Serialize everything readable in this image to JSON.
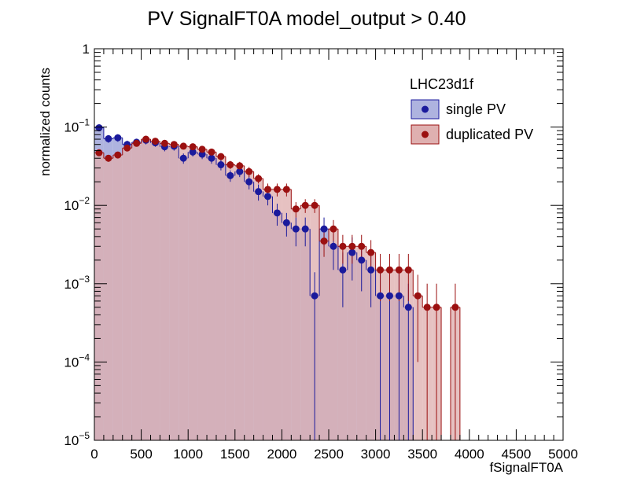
{
  "chart_data": {
    "type": "bar",
    "title": "PV SignalFT0A  model_output > 0.40",
    "xlabel": "fSignalFT0A",
    "ylabel": "normalized counts",
    "xlim": [
      0,
      5000
    ],
    "ylim": [
      1e-05,
      1
    ],
    "yscale": "log",
    "bin_width": 100,
    "x_ticks": [
      "0",
      "500",
      "1000",
      "1500",
      "2000",
      "2500",
      "3000",
      "3500",
      "4000",
      "4500",
      "5000"
    ],
    "y_ticks": [
      {
        "base": "1",
        "exp": ""
      },
      {
        "base": "10",
        "exp": "−1"
      },
      {
        "base": "10",
        "exp": "−2"
      },
      {
        "base": "10",
        "exp": "−3"
      },
      {
        "base": "10",
        "exp": "−4"
      },
      {
        "base": "10",
        "exp": "−5"
      }
    ],
    "legend": {
      "header": "LHC23d1f",
      "placement": "top-right"
    },
    "series": [
      {
        "name": "single PV",
        "fill": "#aeb3df",
        "marker": "#1a1a9c",
        "line": "#1a1a9c",
        "values": [
          0.098,
          0.071,
          0.073,
          0.06,
          0.064,
          0.068,
          0.063,
          0.056,
          0.057,
          0.04,
          0.048,
          0.045,
          0.04,
          0.033,
          0.024,
          0.027,
          0.02,
          0.015,
          0.013,
          0.008,
          0.006,
          0.005,
          0.005,
          0.0007,
          0.005,
          0.003,
          0.0015,
          0.0025,
          0.002,
          0.0015,
          0.0007,
          0.0007,
          0.0007,
          0.0005,
          0,
          0,
          0,
          0,
          0,
          0,
          0,
          0,
          0,
          0,
          0,
          0,
          0,
          0,
          0,
          0
        ],
        "errors": [
          0.01,
          0.008,
          0.008,
          0.007,
          0.007,
          0.008,
          0.007,
          0.007,
          0.007,
          0.006,
          0.006,
          0.006,
          0.006,
          0.005,
          0.004,
          0.004,
          0.004,
          0.0035,
          0.003,
          0.0025,
          0.002,
          0.002,
          0.002,
          0.0007,
          0.002,
          0.0015,
          0.001,
          0.0014,
          0.0012,
          0.001,
          0.0007,
          0.0007,
          0.0007,
          0.0005,
          0,
          0,
          0,
          0,
          0,
          0,
          0,
          0,
          0,
          0,
          0,
          0,
          0,
          0,
          0,
          0
        ]
      },
      {
        "name": "duplicated PV",
        "fill": "#dfb0b0",
        "marker": "#9b1010",
        "line": "#9b1010",
        "values": [
          0.047,
          0.04,
          0.044,
          0.054,
          0.062,
          0.07,
          0.066,
          0.062,
          0.06,
          0.057,
          0.056,
          0.052,
          0.048,
          0.042,
          0.033,
          0.032,
          0.027,
          0.022,
          0.016,
          0.016,
          0.016,
          0.009,
          0.01,
          0.01,
          0.0035,
          0.005,
          0.003,
          0.003,
          0.003,
          0.0025,
          0.0015,
          0.0015,
          0.0015,
          0.0015,
          0.0007,
          0.0005,
          0.0005,
          0,
          0.0005,
          0,
          0,
          0,
          0,
          0,
          0,
          0,
          0,
          0,
          0,
          0
        ],
        "errors": [
          0.004,
          0.004,
          0.004,
          0.005,
          0.005,
          0.005,
          0.005,
          0.005,
          0.005,
          0.005,
          0.005,
          0.005,
          0.004,
          0.004,
          0.004,
          0.004,
          0.004,
          0.003,
          0.003,
          0.003,
          0.003,
          0.002,
          0.002,
          0.002,
          0.0013,
          0.0015,
          0.0012,
          0.0012,
          0.0012,
          0.0011,
          0.0009,
          0.0009,
          0.0009,
          0.0009,
          0.0006,
          0.0005,
          0.0005,
          0,
          0.0005,
          0,
          0,
          0,
          0,
          0,
          0,
          0,
          0,
          0,
          0,
          0
        ]
      }
    ]
  }
}
